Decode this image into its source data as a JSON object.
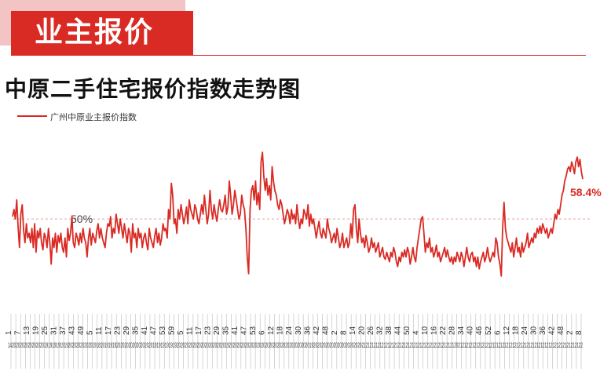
{
  "header": {
    "banner_label": "业主报价"
  },
  "chart_data": {
    "type": "line",
    "title": "中原二手住宅报价指数走势图",
    "series": [
      {
        "name": "广州中原业主报价指数",
        "color": "#d92a24",
        "values": [
          50.5,
          52.0,
          50.0,
          54.0,
          48.5,
          44.0,
          51.0,
          53.0,
          47.5,
          45.0,
          49.0,
          46.0,
          47.0,
          45.0,
          48.0,
          44.0,
          49.0,
          43.0,
          47.5,
          46.0,
          48.0,
          45.0,
          43.5,
          47.0,
          46.0,
          44.0,
          48.0,
          45.0,
          40.5,
          46.0,
          44.0,
          47.0,
          43.0,
          46.5,
          45.0,
          47.0,
          44.0,
          43.0,
          46.0,
          42.0,
          48.0,
          45.5,
          47.0,
          50.5,
          45.0,
          44.0,
          47.0,
          46.0,
          44.5,
          47.0,
          45.0,
          48.0,
          46.0,
          45.0,
          42.0,
          46.0,
          48.0,
          44.5,
          47.0,
          46.0,
          45.0,
          47.5,
          49.0,
          46.0,
          48.0,
          46.0,
          45.0,
          44.0,
          47.0,
          49.0,
          48.5,
          50.5,
          46.0,
          48.0,
          47.0,
          51.0,
          49.0,
          47.0,
          50.0,
          48.0,
          46.0,
          49.0,
          47.0,
          45.0,
          48.0,
          47.0,
          43.0,
          49.0,
          46.0,
          47.0,
          44.0,
          48.0,
          46.0,
          47.0,
          44.0,
          46.0,
          47.0,
          45.0,
          43.5,
          48.0,
          46.0,
          45.0,
          44.0,
          46.5,
          48.0,
          45.0,
          47.0,
          44.5,
          46.0,
          49.0,
          47.5,
          48.0,
          46.0,
          52.0,
          50.0,
          57.5,
          55.0,
          49.0,
          50.0,
          47.0,
          52.0,
          50.0,
          53.0,
          51.0,
          49.0,
          50.5,
          52.5,
          49.0,
          54.0,
          52.0,
          51.0,
          50.0,
          53.0,
          52.0,
          50.0,
          49.0,
          51.0,
          53.0,
          51.0,
          55.0,
          52.0,
          49.0,
          51.0,
          56.0,
          52.0,
          50.0,
          53.0,
          51.0,
          49.5,
          52.0,
          54.0,
          52.0,
          51.5,
          53.0,
          55.0,
          51.0,
          52.5,
          58.0,
          55.0,
          51.0,
          53.0,
          56.0,
          54.0,
          52.0,
          50.0,
          51.0,
          55.0,
          53.0,
          52.0,
          48.0,
          42.0,
          38.5,
          52.0,
          56.0,
          57.0,
          54.0,
          58.0,
          53.0,
          55.5,
          52.0,
          62.0,
          64.0,
          59.0,
          56.0,
          58.5,
          55.0,
          57.0,
          54.0,
          61.0,
          58.0,
          56.0,
          55.0,
          53.0,
          52.0,
          54.0,
          53.0,
          51.0,
          49.0,
          50.5,
          52.0,
          51.0,
          49.0,
          52.0,
          50.0,
          51.0,
          49.0,
          53.0,
          50.0,
          48.0,
          50.0,
          49.0,
          52.0,
          51.0,
          50.0,
          53.0,
          48.5,
          51.0,
          49.0,
          50.0,
          48.0,
          46.0,
          48.0,
          49.5,
          47.0,
          46.0,
          48.0,
          47.0,
          46.0,
          50.0,
          48.0,
          47.0,
          45.0,
          46.0,
          47.0,
          45.0,
          48.0,
          46.0,
          44.0,
          45.0,
          47.0,
          44.0,
          45.0,
          46.0,
          44.0,
          45.0,
          49.0,
          46.0,
          52.0,
          53.0,
          48.0,
          45.0,
          50.0,
          47.0,
          45.0,
          46.0,
          44.0,
          46.5,
          45.0,
          43.0,
          44.0,
          46.0,
          44.0,
          45.0,
          43.0,
          44.0,
          45.0,
          42.0,
          43.0,
          44.0,
          42.0,
          41.5,
          43.0,
          42.0,
          41.0,
          43.0,
          42.0,
          44.0,
          43.0,
          41.0,
          40.0,
          42.0,
          41.0,
          43.0,
          42.0,
          43.5,
          42.0,
          44.0,
          43.0,
          40.5,
          42.0,
          44.0,
          42.0,
          41.0,
          44.0,
          46.0,
          48.0,
          50.0,
          50.5,
          47.0,
          43.0,
          45.0,
          44.0,
          46.0,
          43.0,
          44.0,
          42.0,
          43.0,
          44.5,
          42.0,
          43.0,
          41.0,
          42.0,
          43.0,
          44.0,
          42.0,
          43.5,
          42.0,
          41.0,
          42.0,
          40.5,
          42.0,
          41.0,
          43.0,
          42.0,
          41.0,
          43.0,
          42.0,
          40.0,
          42.0,
          44.0,
          42.0,
          41.0,
          42.5,
          43.0,
          41.0,
          42.0,
          40.0,
          42.0,
          39.5,
          41.0,
          42.0,
          43.0,
          41.0,
          42.0,
          44.0,
          42.0,
          41.0,
          42.0,
          43.0,
          42.0,
          46.0,
          45.0,
          42.0,
          40.5,
          38.0,
          48.0,
          53.5,
          48.0,
          46.0,
          45.0,
          44.0,
          43.0,
          45.0,
          42.0,
          44.0,
          46.0,
          43.0,
          44.0,
          42.0,
          45.0,
          43.0,
          44.0,
          45.0,
          47.0,
          44.0,
          45.0,
          46.0,
          45.0,
          47.0,
          46.0,
          48.0,
          47.0,
          48.5,
          47.0,
          49.0,
          48.0,
          47.0,
          48.0,
          46.0,
          47.0,
          48.0,
          47.0,
          49.0,
          51.0,
          50.0,
          52.0,
          51.0,
          53.0,
          55.0,
          56.0,
          58.0,
          59.0,
          60.5,
          61.0,
          60.0,
          62.0,
          61.0,
          59.5,
          62.0,
          63.0,
          61.0,
          62.5,
          60.0,
          58.4
        ]
      }
    ],
    "ylim": [
      35,
      68
    ],
    "reference_line": {
      "value": 50,
      "label": "50%"
    },
    "end_label": "58.4%",
    "x_tick_labels": [
      "1",
      "7",
      "13",
      "19",
      "25",
      "31",
      "37",
      "43",
      "49",
      "5",
      "11",
      "17",
      "23",
      "29",
      "35",
      "41",
      "47",
      "53",
      "59",
      "5",
      "11",
      "17",
      "23",
      "29",
      "35",
      "41",
      "47",
      "53",
      "6",
      "12",
      "18",
      "24",
      "30",
      "36",
      "42",
      "48",
      "2",
      "8",
      "14",
      "20",
      "26",
      "32",
      "38",
      "44",
      "50",
      "4",
      "10",
      "16",
      "22",
      "28",
      "34",
      "40",
      "46",
      "52",
      "6",
      "12",
      "18",
      "24",
      "30",
      "36",
      "42",
      "48",
      "2",
      "8"
    ],
    "x_bottom_text": "1420202020202020201919191919192020202020201918191919192020202020202020201919191919192020202020202020202020201920202020202020202020202020202020202020201920202020202020202020202021212121212121212121212121212121212121212121212021212121212121212121212121212121212121212121212121212121212122"
  }
}
